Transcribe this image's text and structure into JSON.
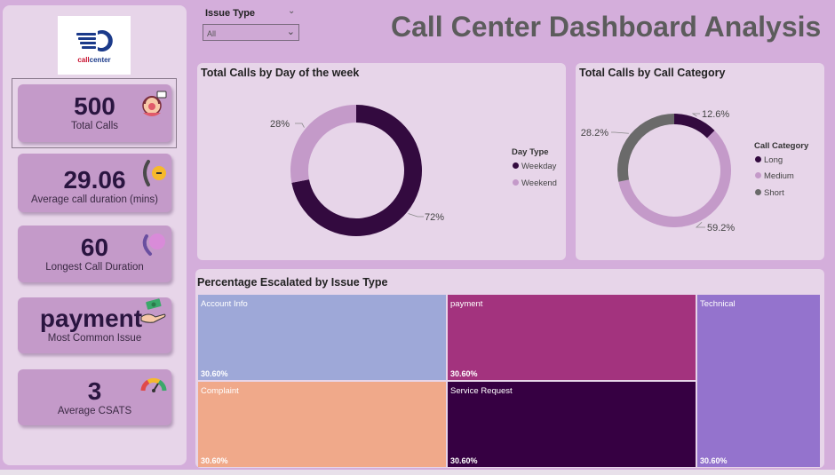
{
  "title": "Call Center Dashboard Analysis",
  "logo": {
    "text_prefix": "call",
    "text_suffix": "center"
  },
  "filter": {
    "label": "Issue Type",
    "value": "All"
  },
  "kpis": [
    {
      "value": "500",
      "label": "Total Calls",
      "icon": "call-agent-icon"
    },
    {
      "value": "29.06",
      "label": "Average call duration (mins)",
      "icon": "phone-clock-icon"
    },
    {
      "value": "60",
      "label": "Longest Call Duration",
      "icon": "phone-ringing-icon"
    },
    {
      "value": "payment",
      "label": "Most Common Issue",
      "icon": "money-hand-icon"
    },
    {
      "value": "3",
      "label": "Average CSATS",
      "icon": "gauge-icon"
    }
  ],
  "charts": {
    "day": {
      "title": "Total Calls by Day of the week",
      "legend_title": "Day Type"
    },
    "category": {
      "title": "Total Calls by Call Category",
      "legend_title": "Call Category"
    },
    "escalated": {
      "title": "Percentage Escalated by Issue Type"
    }
  },
  "chart_data": [
    {
      "type": "pie",
      "title": "Total Calls by Day of the week",
      "legend_title": "Day Type",
      "legend_placement": "right",
      "donut": true,
      "slices": [
        {
          "name": "Weekday",
          "value": 72,
          "label": "72%",
          "color": "#330a3f"
        },
        {
          "name": "Weekend",
          "value": 28,
          "label": "28%",
          "color": "#c49ac9"
        }
      ]
    },
    {
      "type": "pie",
      "title": "Total Calls by Call Category",
      "legend_title": "Call Category",
      "legend_placement": "right",
      "donut": true,
      "slices": [
        {
          "name": "Long",
          "value": 12.6,
          "label": "12.6%",
          "color": "#330a3f"
        },
        {
          "name": "Medium",
          "value": 59.2,
          "label": "59.2%",
          "color": "#c49ac9"
        },
        {
          "name": "Short",
          "value": 28.2,
          "label": "28.2%",
          "color": "#6a6a6a"
        }
      ]
    },
    {
      "type": "treemap",
      "title": "Percentage Escalated by Issue Type",
      "items": [
        {
          "name": "Account Info",
          "value": 30.6,
          "label": "30.60%",
          "color": "#9ea8d8"
        },
        {
          "name": "payment",
          "value": 30.6,
          "label": "30.60%",
          "color": "#a3337e"
        },
        {
          "name": "Technical",
          "value": 30.6,
          "label": "30.60%",
          "color": "#9473cd"
        },
        {
          "name": "Complaint",
          "value": 30.6,
          "label": "30.60%",
          "color": "#f0a98a"
        },
        {
          "name": "Service Request",
          "value": 30.6,
          "label": "30.60%",
          "color": "#360042"
        }
      ]
    }
  ]
}
